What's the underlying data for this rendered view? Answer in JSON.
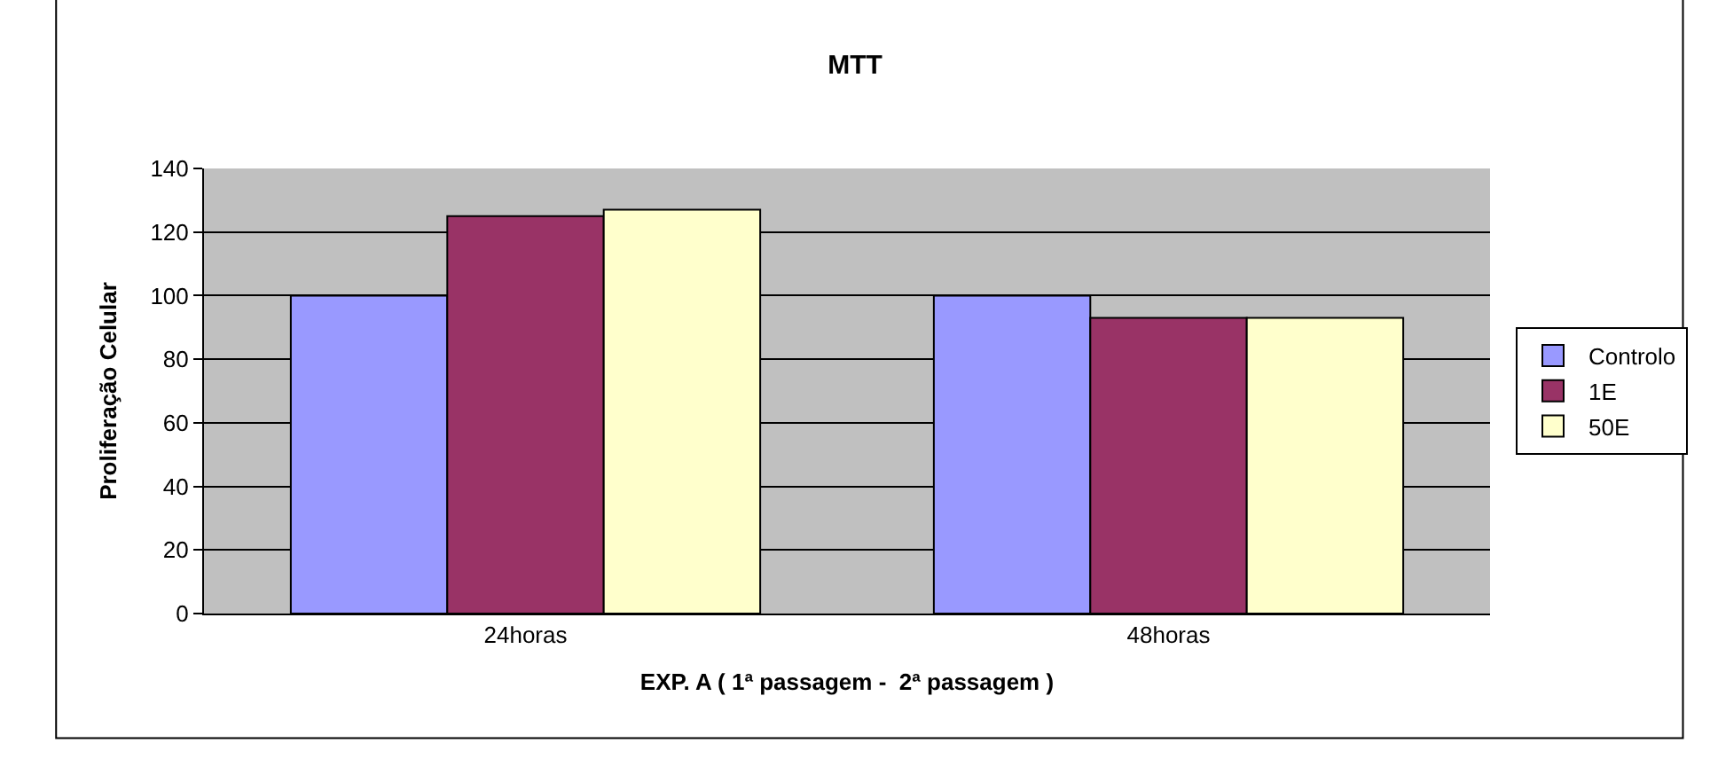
{
  "chart_data": {
    "type": "bar",
    "title": "MTT",
    "xlabel": "EXP. A ( 1ª passagem -  2ª passagem )",
    "ylabel": "Proliferação Celular",
    "categories": [
      "24horas",
      "48horas"
    ],
    "series": [
      {
        "name": "Controlo",
        "color": "#9999ff",
        "values": [
          100,
          100
        ]
      },
      {
        "name": "1E",
        "color": "#993366",
        "values": [
          125,
          93
        ]
      },
      {
        "name": "50E",
        "color": "#ffffcc",
        "values": [
          127,
          93
        ]
      }
    ],
    "ylim": [
      0,
      140
    ],
    "yticks": [
      0,
      20,
      40,
      60,
      80,
      100,
      120,
      140
    ],
    "grid": "y",
    "legend": "right"
  }
}
